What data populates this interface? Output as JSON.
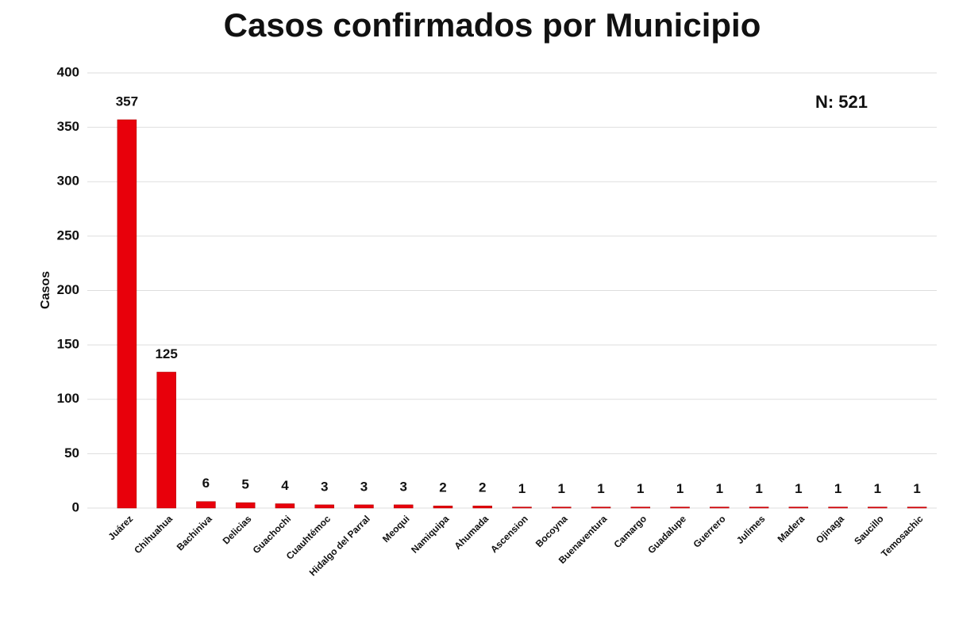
{
  "chart_data": {
    "type": "bar",
    "title": "Casos confirmados por Municipio",
    "y_label": "Casos",
    "annotation": "N: 521",
    "categories": [
      "Juárez",
      "Chihuahua",
      "Bachiniva",
      "Delicias",
      "Guachochi",
      "Cuauhtémoc",
      "Hidalgo del Parral",
      "Meoqui",
      "Namiquipa",
      "Ahumada",
      "Ascension",
      "Bocoyna",
      "Buenaventura",
      "Camargo",
      "Guadalupe",
      "Guerrero",
      "Julimes",
      "Madera",
      "Ojinaga",
      "Saucillo",
      "Temosachic"
    ],
    "values": [
      357,
      125,
      6,
      5,
      4,
      3,
      3,
      3,
      2,
      2,
      1,
      1,
      1,
      1,
      1,
      1,
      1,
      1,
      1,
      1,
      1
    ],
    "color": "#e8000b",
    "ylim": [
      0,
      400
    ],
    "yticks": [
      0,
      50,
      100,
      150,
      200,
      250,
      300,
      350,
      400
    ],
    "grid": true
  }
}
